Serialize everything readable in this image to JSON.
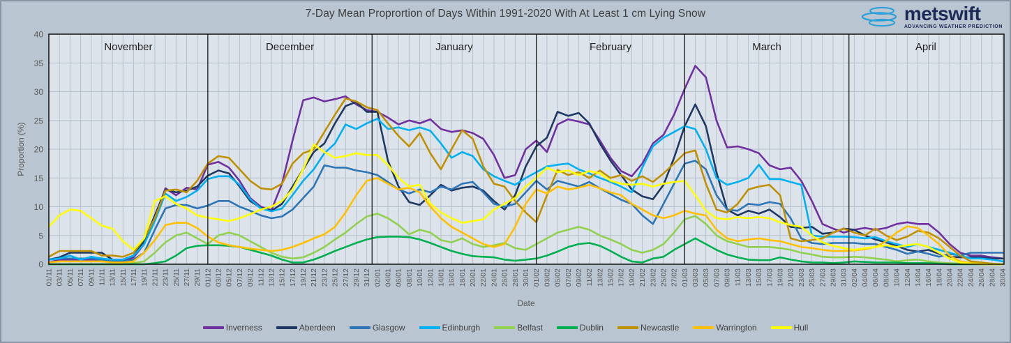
{
  "title": "7-Day Mean Proprortion of Days Within 1991-2020 With At Least 1 cm Lying Snow",
  "logo": {
    "name": "metswift",
    "tagline": "ADVANCING WEATHER PREDICTION",
    "icon": "stacked-ellipses-icon",
    "navy": "#1d2a56",
    "blue": "#2d9fd9"
  },
  "colors": {
    "background": "#b9c5d1",
    "plot_background": "#dde3ea",
    "gridline": "#b5c1cd",
    "plot_border": "#1a1a1a",
    "axis_text": "#595959",
    "month_text": "#1f1f1f",
    "title_text": "#3d3d3d"
  },
  "chart_data": {
    "type": "line",
    "title": "7-Day Mean Proprortion of Days Within 1991-2020 With At Least 1 cm Lying Snow",
    "xlabel": "Date",
    "ylabel": "Proportion (%)",
    "ylim": [
      0,
      40
    ],
    "grid": true,
    "legend_position": "bottom",
    "y_ticks": [
      0,
      5,
      10,
      15,
      20,
      25,
      30,
      35,
      40
    ],
    "month_bands": [
      {
        "label": "November",
        "start_day": 0,
        "end_day": 30
      },
      {
        "label": "December",
        "start_day": 30,
        "end_day": 61
      },
      {
        "label": "January",
        "start_day": 61,
        "end_day": 92
      },
      {
        "label": "February",
        "start_day": 92,
        "end_day": 120
      },
      {
        "label": "March",
        "start_day": 120,
        "end_day": 151
      },
      {
        "label": "April",
        "start_day": 151,
        "end_day": 180
      }
    ],
    "x_tick_labels": [
      "01/11",
      "03/11",
      "05/11",
      "07/11",
      "09/11",
      "11/11",
      "13/11",
      "15/11",
      "17/11",
      "19/11",
      "21/11",
      "23/11",
      "25/11",
      "27/11",
      "29/11",
      "01/12",
      "03/12",
      "05/12",
      "07/12",
      "09/12",
      "11/12",
      "13/12",
      "15/12",
      "17/12",
      "19/12",
      "21/12",
      "23/12",
      "25/12",
      "27/12",
      "29/12",
      "31/12",
      "02/01",
      "04/01",
      "06/01",
      "08/01",
      "10/01",
      "12/01",
      "14/01",
      "16/01",
      "18/01",
      "20/01",
      "22/01",
      "24/01",
      "26/01",
      "28/01",
      "30/01",
      "01/02",
      "03/02",
      "05/02",
      "07/02",
      "09/02",
      "11/02",
      "13/02",
      "15/02",
      "17/02",
      "19/02",
      "21/02",
      "23/02",
      "25/02",
      "27/02",
      "01/03",
      "03/03",
      "05/03",
      "07/03",
      "09/03",
      "11/03",
      "13/03",
      "15/03",
      "17/03",
      "19/03",
      "21/03",
      "23/03",
      "25/03",
      "27/03",
      "29/03",
      "31/03",
      "02/04",
      "04/04",
      "06/04",
      "08/04",
      "10/04",
      "12/04",
      "14/04",
      "16/04",
      "18/04",
      "20/04",
      "22/04",
      "24/04",
      "26/04",
      "28/04",
      "30/04"
    ],
    "series": [
      {
        "name": "Inverness",
        "color": "#7030A0",
        "values": [
          0.3,
          0.8,
          0.8,
          0.8,
          0.8,
          0.8,
          0.5,
          0.5,
          1.2,
          3.5,
          8,
          13.2,
          12,
          13.3,
          13,
          17.3,
          17.8,
          16.8,
          14.5,
          11.5,
          10,
          9.4,
          14,
          21.5,
          28.5,
          29,
          28.3,
          28.7,
          29.2,
          27.8,
          26.8,
          26.5,
          25.5,
          24.3,
          25,
          24.5,
          25.2,
          23.5,
          23,
          23.3,
          22.8,
          21.8,
          19,
          15,
          15.5,
          20,
          21.5,
          19.5,
          24.3,
          25.2,
          24.8,
          24.3,
          21.5,
          18.5,
          16.2,
          15.3,
          17.5,
          21,
          22.5,
          26,
          30.5,
          34.5,
          32.5,
          25,
          20.3,
          20.5,
          20,
          19.3,
          17.2,
          16.5,
          16.8,
          14.5,
          11,
          7,
          6.2,
          5.5,
          6,
          6.3,
          6,
          6.3,
          7,
          7.3,
          7,
          7,
          5.5,
          3.5,
          2,
          1.5,
          1.5,
          1.2,
          1
        ]
      },
      {
        "name": "Aberdeen",
        "color": "#1F3864",
        "values": [
          0.8,
          1.2,
          2,
          2,
          2,
          2,
          0.8,
          0.8,
          1.5,
          4,
          8.5,
          13,
          12.5,
          12.8,
          13.5,
          15.4,
          16.3,
          15.8,
          13.5,
          11,
          9.8,
          9.3,
          10.5,
          13.5,
          16.5,
          19.5,
          21,
          24.5,
          27.5,
          28.2,
          26.5,
          26.5,
          18,
          13.5,
          10.8,
          10.3,
          12,
          13.8,
          12.8,
          13.3,
          13.5,
          12.8,
          11,
          9.5,
          12,
          17,
          20.5,
          22,
          26.5,
          25.8,
          26.3,
          24.5,
          21,
          18,
          15.5,
          13,
          11.8,
          11.3,
          13.8,
          18.5,
          24,
          27.8,
          24,
          16,
          9.5,
          8.5,
          9.3,
          8.8,
          9.5,
          8.2,
          6.5,
          6.3,
          6.5,
          5.3,
          5.5,
          6.2,
          6,
          5,
          4.3,
          3.8,
          3.2,
          2.5,
          2.2,
          2.5,
          1.8,
          1.3,
          1.2,
          1.2,
          1.2,
          1,
          1
        ]
      },
      {
        "name": "Glasgow",
        "color": "#2E75B6",
        "values": [
          0.8,
          1,
          1,
          1,
          1,
          0.8,
          0.5,
          0.5,
          0.8,
          2,
          6,
          9.7,
          10.3,
          10.3,
          9.7,
          10.2,
          11,
          11,
          10,
          9.3,
          8.5,
          8,
          8.3,
          9.5,
          11.5,
          13.5,
          17.2,
          16.8,
          16.8,
          16.3,
          16,
          15.5,
          14.3,
          13,
          12.3,
          13,
          12.5,
          13.5,
          13,
          14,
          14.3,
          12.5,
          10.5,
          10,
          10.5,
          12.5,
          14.5,
          13,
          14.5,
          14,
          13.5,
          14.3,
          13.2,
          12.2,
          11.2,
          10.5,
          8.5,
          7,
          10.5,
          14,
          17.5,
          18,
          16.5,
          12,
          9.5,
          9.3,
          10.5,
          10.3,
          10.8,
          10.5,
          8,
          4.5,
          3.7,
          3.5,
          3.7,
          3.7,
          3.7,
          3.5,
          3.5,
          3,
          2.5,
          1.8,
          2.2,
          1.8,
          1.3,
          1.8,
          1.5,
          2,
          2,
          2,
          2
        ]
      },
      {
        "name": "Edinburgh",
        "color": "#00B0F0",
        "values": [
          0.8,
          1,
          1.5,
          0.8,
          1.3,
          1,
          0.8,
          0.8,
          1.5,
          3.5,
          7.5,
          12.3,
          11,
          11.7,
          12.8,
          14.8,
          15.3,
          15.3,
          13.8,
          11.3,
          9.7,
          9.2,
          9.7,
          12,
          14.5,
          16.5,
          19.3,
          21,
          24.3,
          23.5,
          24.5,
          25.3,
          23.5,
          23.8,
          23.3,
          23.8,
          23.2,
          21,
          18.5,
          19.5,
          18.8,
          16.5,
          15.3,
          14.5,
          13.8,
          15,
          16,
          17,
          17.3,
          17.5,
          16.5,
          15.8,
          15,
          14.3,
          13.5,
          12.5,
          16.8,
          20.5,
          22,
          23,
          24,
          23.5,
          20,
          15,
          13.8,
          14.3,
          15,
          17.3,
          14.8,
          14.8,
          14.3,
          13.8,
          5,
          4.8,
          4.8,
          4.8,
          4.7,
          4.5,
          4.7,
          4,
          3.5,
          3,
          3.5,
          3,
          2.5,
          2,
          1.5,
          1,
          1,
          0.8,
          0.5
        ]
      },
      {
        "name": "Belfast",
        "color": "#92D050",
        "values": [
          0,
          0,
          0,
          0,
          0,
          0,
          0,
          0,
          0.2,
          0.5,
          2,
          3.8,
          5,
          5.5,
          4.5,
          3.5,
          5,
          5.5,
          5,
          4,
          3,
          2,
          1.3,
          1,
          1.2,
          2,
          3,
          4.3,
          5.5,
          7,
          8.3,
          8.8,
          8,
          6.8,
          5.2,
          6,
          5.5,
          4.2,
          3.8,
          4.5,
          3.5,
          3,
          3.3,
          3.7,
          2.8,
          2.5,
          3.5,
          4.5,
          5.5,
          6,
          6.5,
          6,
          5,
          4.3,
          3.5,
          2.5,
          2,
          2.5,
          3.5,
          5.5,
          7.8,
          8.4,
          7,
          5,
          4,
          3.5,
          3,
          3,
          3,
          2.8,
          2.5,
          2,
          1.7,
          1.3,
          1.2,
          1.2,
          1.3,
          1.2,
          1,
          0.8,
          0.5,
          0.7,
          0.8,
          0.5,
          0.3,
          0.2,
          0.1,
          0.1,
          0,
          0,
          0
        ]
      },
      {
        "name": "Dublin",
        "color": "#00B050",
        "values": [
          0,
          0,
          0,
          0,
          0,
          0,
          0,
          0,
          0,
          0,
          0.2,
          0.5,
          1.5,
          2.8,
          3.2,
          3.3,
          3.3,
          3.2,
          3,
          2.5,
          2,
          1.5,
          0.8,
          0.3,
          0.3,
          0.8,
          1.5,
          2.3,
          3,
          3.7,
          4.3,
          4.7,
          4.8,
          4.8,
          4.7,
          4.3,
          3.7,
          3,
          2.3,
          1.8,
          1.4,
          1.3,
          1.2,
          0.8,
          0.6,
          0.8,
          1,
          1.5,
          2.2,
          3,
          3.5,
          3.7,
          3.2,
          2.3,
          1.3,
          0.5,
          0.3,
          1,
          1.3,
          2.5,
          3.5,
          4.5,
          3.5,
          2.5,
          1.7,
          1.2,
          0.8,
          0.7,
          0.7,
          1.2,
          0.8,
          0.5,
          0.3,
          0.3,
          0.2,
          0.3,
          0.5,
          0.4,
          0.3,
          0.3,
          0.3,
          0.2,
          0.2,
          0.2,
          0.1,
          0,
          0,
          0,
          0,
          0,
          0
        ]
      },
      {
        "name": "Newcastle",
        "color": "#BF9000",
        "values": [
          1.3,
          2.3,
          2.3,
          2.3,
          2.3,
          1.5,
          1.5,
          1.3,
          2,
          4.5,
          8,
          12.8,
          13,
          12.5,
          14.5,
          17.5,
          18.8,
          18.5,
          16.5,
          14.5,
          13.2,
          13,
          14,
          17.5,
          19.3,
          20,
          23,
          26,
          28.8,
          28.3,
          27.3,
          26.8,
          24.5,
          22.3,
          20.5,
          22.8,
          19.3,
          16.5,
          20,
          23.3,
          21.8,
          17,
          14,
          13.5,
          11,
          9,
          7.3,
          12,
          16.4,
          15.5,
          16,
          15,
          16.3,
          15,
          15.5,
          14.5,
          15.3,
          14.3,
          15.8,
          17.5,
          19.3,
          19.8,
          14,
          9.5,
          9,
          10.5,
          13,
          13.5,
          13.8,
          12,
          4.5,
          4,
          4.2,
          4.5,
          5.5,
          6.2,
          5.5,
          5,
          6.2,
          5,
          4.2,
          4.8,
          5.8,
          5.5,
          4.5,
          3,
          1.5,
          0.5,
          0.3,
          0.1,
          0
        ]
      },
      {
        "name": "Warrington",
        "color": "#FFC000",
        "values": [
          0.3,
          0.5,
          0.5,
          0.5,
          0.5,
          0.5,
          0.3,
          0.3,
          0.5,
          2,
          4.2,
          6.8,
          7.2,
          7.2,
          6.3,
          4.8,
          3.8,
          3.3,
          3,
          2.7,
          2.5,
          2.3,
          2.5,
          3,
          3.7,
          4.5,
          5.2,
          6.5,
          9,
          12,
          14.5,
          15,
          14,
          13,
          13.3,
          12.5,
          10,
          8,
          6.5,
          5.5,
          4.5,
          3.5,
          3,
          3.5,
          6.5,
          10.5,
          13,
          12.3,
          13.5,
          13,
          13.3,
          13.8,
          13.2,
          12.5,
          12,
          10.5,
          9.5,
          8.5,
          8,
          8.5,
          9.3,
          8.8,
          8.5,
          6,
          4.5,
          4,
          4.3,
          4.5,
          4.2,
          4,
          3.5,
          3,
          2.8,
          2.5,
          2.3,
          2.3,
          2.4,
          2.6,
          3,
          4,
          5.5,
          6.6,
          6.3,
          5,
          3.5,
          1.5,
          0.5,
          0.2,
          0.1,
          0,
          0
        ]
      },
      {
        "name": "Hull",
        "color": "#FFFF00",
        "values": [
          6.5,
          8.5,
          9.5,
          9.3,
          8,
          6.7,
          6.2,
          4,
          2.5,
          4.5,
          11,
          11.8,
          10.5,
          9.7,
          8.5,
          8.1,
          7.8,
          7.5,
          8,
          8.7,
          9.5,
          10,
          11,
          13,
          16.5,
          20.8,
          19.5,
          18.5,
          18.8,
          19.3,
          19,
          19,
          17.3,
          15,
          13.5,
          13.8,
          10.5,
          9,
          8,
          7.2,
          7.5,
          7.8,
          9.5,
          10.5,
          11.5,
          13.5,
          15,
          16.8,
          16,
          16.3,
          15.5,
          16.2,
          15.8,
          14.5,
          14,
          13.8,
          14,
          13.5,
          14,
          14.3,
          14.5,
          12,
          9.3,
          8,
          7.8,
          8.2,
          8,
          8.2,
          8,
          7.3,
          6.8,
          6.5,
          5,
          3.8,
          3.2,
          2.8,
          2.5,
          2.8,
          3,
          3.3,
          3,
          3.3,
          3.5,
          3,
          2,
          1,
          0.3,
          0.1,
          0,
          0,
          0
        ]
      }
    ]
  }
}
